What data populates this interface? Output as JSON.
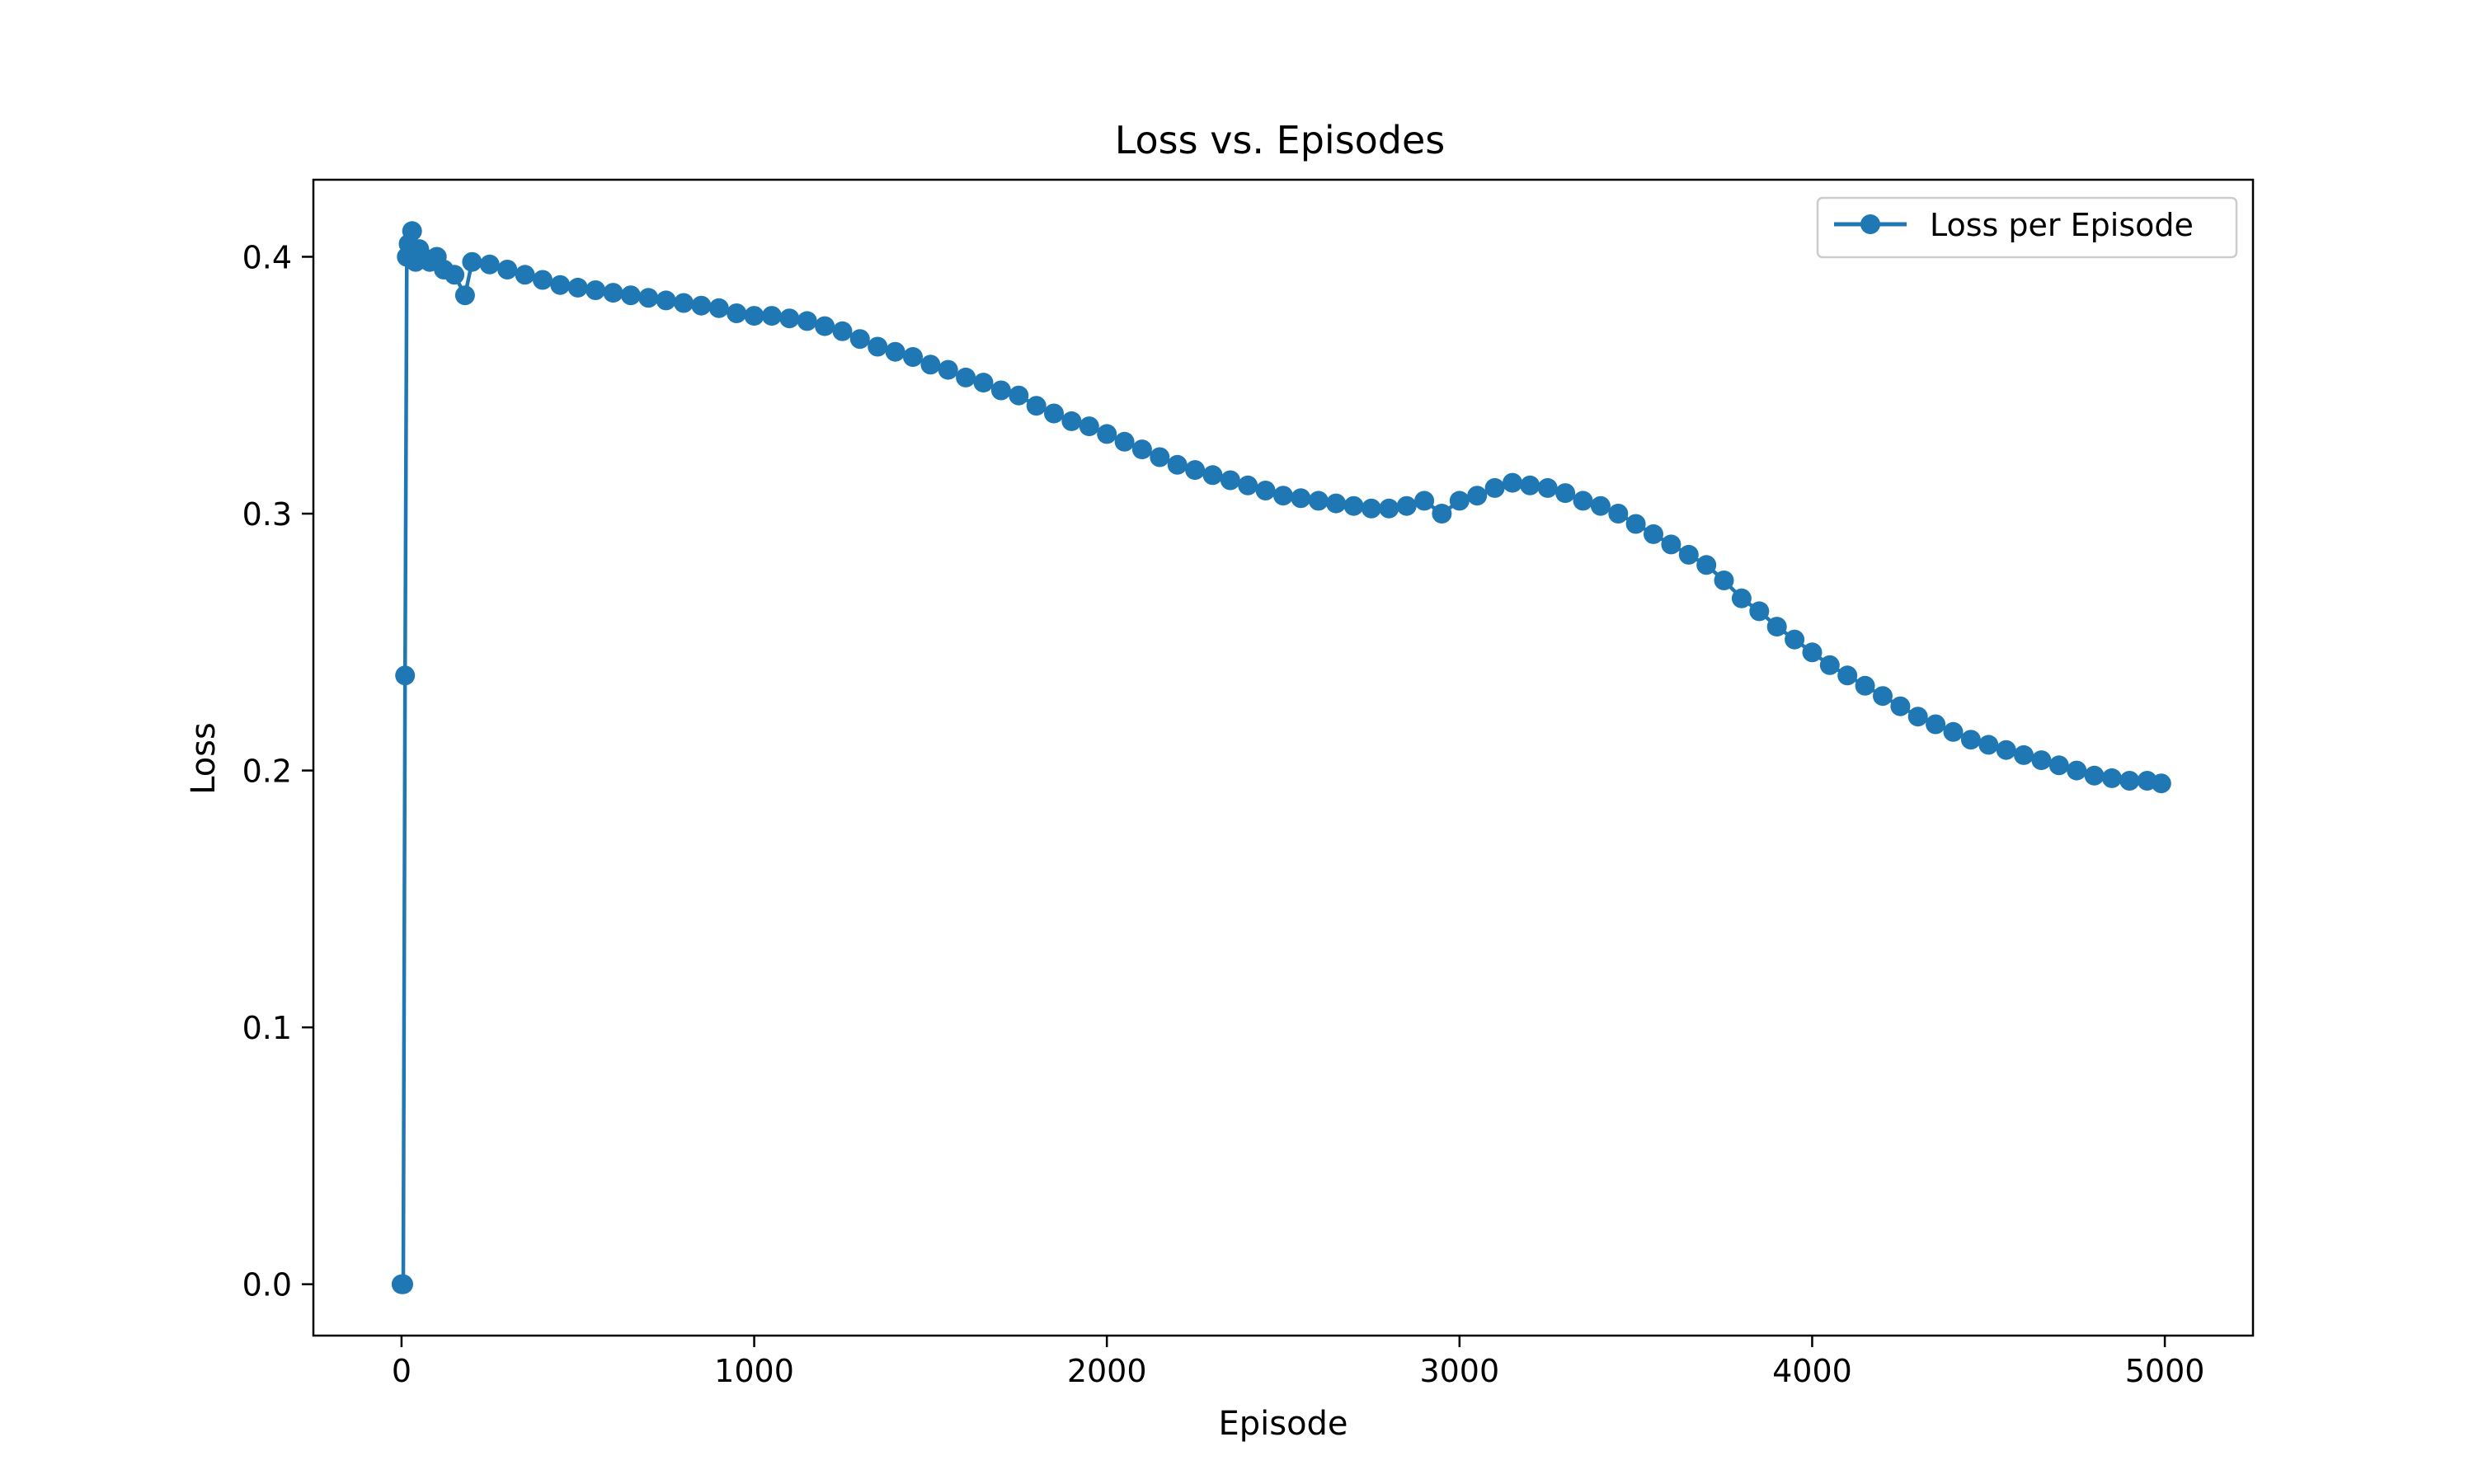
{
  "chart_data": {
    "type": "line",
    "title": "Loss vs. Episodes",
    "xlabel": "Episode",
    "ylabel": "Loss",
    "xlim": [
      -250,
      5250
    ],
    "ylim": [
      -0.02,
      0.43
    ],
    "xticks": [
      0,
      1000,
      2000,
      3000,
      4000,
      5000
    ],
    "xtick_labels": [
      "0",
      "1000",
      "2000",
      "3000",
      "4000",
      "5000"
    ],
    "yticks": [
      0.0,
      0.1,
      0.2,
      0.3,
      0.4
    ],
    "ytick_labels": [
      "0.0",
      "0.1",
      "0.2",
      "0.3",
      "0.4"
    ],
    "grid": false,
    "legend_position": "top-right",
    "series": [
      {
        "name": "Loss per Episode",
        "color": "#1f77b4",
        "marker": "circle",
        "x": [
          0,
          5,
          10,
          15,
          20,
          30,
          40,
          50,
          60,
          80,
          100,
          120,
          150,
          180,
          200,
          250,
          300,
          350,
          400,
          450,
          500,
          550,
          600,
          650,
          700,
          750,
          800,
          850,
          900,
          950,
          1000,
          1050,
          1100,
          1150,
          1200,
          1250,
          1300,
          1350,
          1400,
          1450,
          1500,
          1550,
          1600,
          1650,
          1700,
          1750,
          1800,
          1850,
          1900,
          1950,
          2000,
          2050,
          2100,
          2150,
          2200,
          2250,
          2300,
          2350,
          2400,
          2450,
          2500,
          2550,
          2600,
          2650,
          2700,
          2750,
          2800,
          2850,
          2900,
          2950,
          3000,
          3050,
          3100,
          3150,
          3200,
          3250,
          3300,
          3350,
          3400,
          3450,
          3500,
          3550,
          3600,
          3650,
          3700,
          3750,
          3800,
          3850,
          3900,
          3950,
          4000,
          4050,
          4100,
          4150,
          4200,
          4250,
          4300,
          4350,
          4400,
          4450,
          4500,
          4550,
          4600,
          4650,
          4700,
          4750,
          4800,
          4850,
          4900,
          4950,
          4990
        ],
        "y": [
          0.0,
          0.0,
          0.237,
          0.4,
          0.405,
          0.41,
          0.398,
          0.403,
          0.4,
          0.398,
          0.4,
          0.395,
          0.393,
          0.385,
          0.398,
          0.397,
          0.395,
          0.393,
          0.391,
          0.389,
          0.388,
          0.387,
          0.386,
          0.385,
          0.384,
          0.383,
          0.382,
          0.381,
          0.38,
          0.378,
          0.377,
          0.377,
          0.376,
          0.375,
          0.373,
          0.371,
          0.368,
          0.365,
          0.363,
          0.361,
          0.358,
          0.356,
          0.353,
          0.351,
          0.348,
          0.346,
          0.342,
          0.339,
          0.336,
          0.334,
          0.331,
          0.328,
          0.325,
          0.322,
          0.319,
          0.317,
          0.315,
          0.313,
          0.311,
          0.309,
          0.307,
          0.306,
          0.305,
          0.304,
          0.303,
          0.302,
          0.302,
          0.303,
          0.305,
          0.3,
          0.305,
          0.307,
          0.31,
          0.312,
          0.311,
          0.31,
          0.308,
          0.305,
          0.303,
          0.3,
          0.296,
          0.292,
          0.288,
          0.284,
          0.28,
          0.274,
          0.267,
          0.262,
          0.256,
          0.251,
          0.246,
          0.241,
          0.237,
          0.233,
          0.229,
          0.225,
          0.221,
          0.218,
          0.215,
          0.212,
          0.21,
          0.208,
          0.206,
          0.204,
          0.202,
          0.2,
          0.198,
          0.197,
          0.196,
          0.196,
          0.195
        ]
      }
    ]
  }
}
